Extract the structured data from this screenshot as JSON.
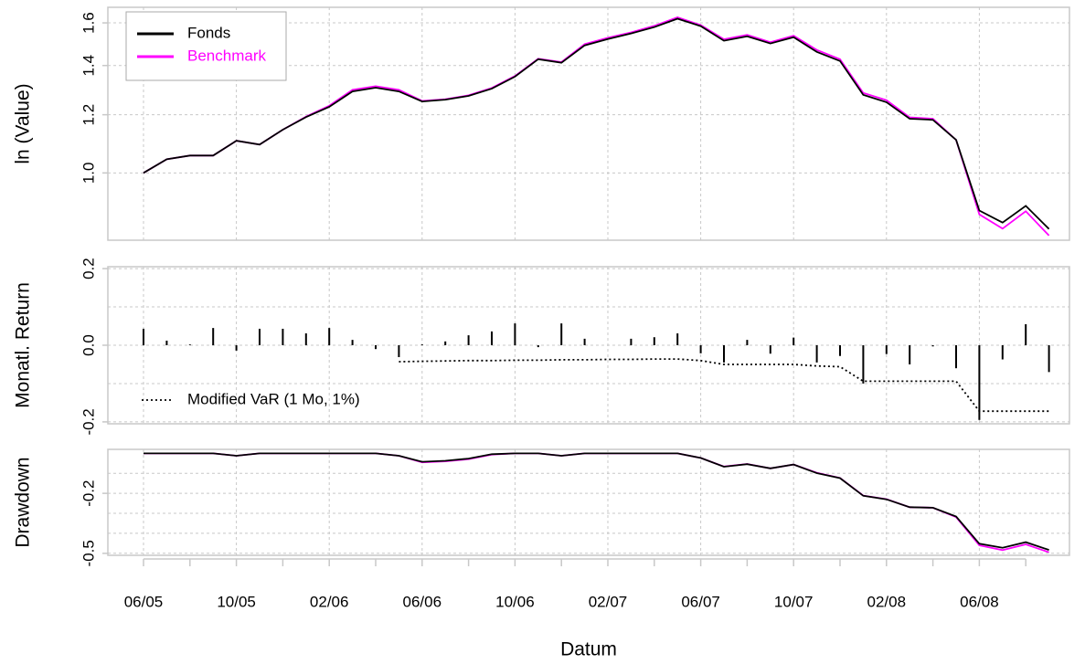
{
  "chart_data": [
    {
      "type": "line",
      "y_label": "ln (Value)",
      "log_scale": true,
      "grid": true,
      "legend": "top-left",
      "ylim": [
        0.81,
        1.68
      ],
      "yticks": [
        {
          "value": 1,
          "label": "1.0"
        },
        1.2,
        1.4,
        1.6
      ],
      "series": [
        {
          "name": "Fonds",
          "color": "#000000",
          "values": [
            1.0,
            1.044,
            1.056,
            1.056,
            1.106,
            1.093,
            1.145,
            1.191,
            1.23,
            1.291,
            1.306,
            1.291,
            1.251,
            1.258,
            1.273,
            1.302,
            1.352,
            1.428,
            1.412,
            1.491,
            1.521,
            1.548,
            1.579,
            1.621,
            1.584,
            1.513,
            1.534,
            1.5,
            1.53,
            1.461,
            1.42,
            1.277,
            1.248,
            1.185,
            1.181,
            1.109,
            0.889,
            0.856,
            0.902,
            0.839
          ]
        },
        {
          "name": "Benchmark",
          "color": "#ff00ff",
          "values": [
            1.0,
            1.044,
            1.056,
            1.056,
            1.106,
            1.093,
            1.145,
            1.193,
            1.234,
            1.297,
            1.312,
            1.297,
            1.253,
            1.26,
            1.275,
            1.305,
            1.355,
            1.43,
            1.415,
            1.497,
            1.527,
            1.553,
            1.585,
            1.628,
            1.589,
            1.52,
            1.541,
            1.506,
            1.537,
            1.47,
            1.428,
            1.285,
            1.256,
            1.19,
            1.185,
            1.109,
            0.878,
            0.84,
            0.887,
            0.822
          ]
        }
      ]
    },
    {
      "type": "bar",
      "y_label": "Monatl. Return",
      "grid": true,
      "legend": "bottom-left",
      "color": "#000000",
      "ylim": [
        -0.205,
        0.205
      ],
      "yticks": [
        -0.2,
        {
          "value": 0,
          "label": "0.0"
        },
        0.2
      ],
      "minor_yticks": [
        -0.1,
        0.1
      ],
      "values": [
        0.043,
        0.012,
        0.002,
        0.045,
        -0.014,
        0.043,
        0.043,
        0.031,
        0.045,
        0.014,
        -0.01,
        -0.031,
        0.002,
        0.01,
        0.026,
        0.036,
        0.057,
        -0.005,
        0.057,
        0.017,
        0.0,
        0.017,
        0.021,
        0.031,
        -0.021,
        -0.045,
        0.014,
        -0.022,
        0.02,
        -0.045,
        -0.028,
        -0.1,
        -0.023,
        -0.05,
        -0.003,
        -0.06,
        -0.195,
        -0.037,
        0.055,
        -0.07
      ],
      "series": [
        {
          "name": "Modified VaR (1 Mo, 1%)",
          "color": "#000000",
          "line_style": "dotted",
          "values": [
            null,
            null,
            null,
            null,
            null,
            null,
            null,
            null,
            null,
            null,
            null,
            -0.043,
            -0.042,
            -0.041,
            -0.04,
            -0.04,
            -0.039,
            -0.039,
            -0.038,
            -0.038,
            -0.037,
            -0.037,
            -0.036,
            -0.036,
            -0.04,
            -0.05,
            -0.05,
            -0.05,
            -0.05,
            -0.054,
            -0.056,
            -0.094,
            -0.094,
            -0.094,
            -0.094,
            -0.094,
            -0.172,
            -0.172,
            -0.172,
            -0.172
          ]
        }
      ]
    },
    {
      "type": "line",
      "y_label": "Drawdown",
      "x_label": "Datum",
      "grid": true,
      "ylim": [
        -0.51,
        0.02
      ],
      "yticks": [
        -0.5,
        -0.2
      ],
      "minor_yticks": [
        -0.4,
        -0.3,
        -0.1
      ],
      "categories": [
        "06/05",
        null,
        null,
        null,
        "10/05",
        null,
        null,
        null,
        "02/06",
        null,
        null,
        null,
        "06/06",
        null,
        null,
        null,
        "10/06",
        null,
        null,
        null,
        "02/07",
        null,
        null,
        null,
        "06/07",
        null,
        null,
        null,
        "10/07",
        null,
        null,
        null,
        "02/08",
        null,
        null,
        null,
        "06/08",
        null,
        null,
        null
      ],
      "series": [
        {
          "name": "Fonds",
          "color": "#000000",
          "values": [
            0,
            0,
            0,
            0,
            -0.012,
            0,
            0,
            0,
            0,
            0,
            0,
            -0.012,
            -0.042,
            -0.037,
            -0.026,
            -0.004,
            0,
            0,
            -0.012,
            0,
            0,
            0,
            0,
            0,
            -0.023,
            -0.067,
            -0.054,
            -0.075,
            -0.056,
            -0.099,
            -0.124,
            -0.212,
            -0.23,
            -0.269,
            -0.272,
            -0.316,
            -0.452,
            -0.472,
            -0.444,
            -0.483
          ]
        },
        {
          "name": "Benchmark",
          "color": "#ff00ff",
          "values": [
            0,
            0,
            0,
            0,
            -0.012,
            0,
            0,
            0,
            0,
            0,
            0,
            -0.012,
            -0.045,
            -0.04,
            -0.029,
            -0.006,
            0,
            0,
            -0.012,
            0,
            0,
            0,
            0,
            0,
            -0.023,
            -0.066,
            -0.053,
            -0.075,
            -0.056,
            -0.097,
            -0.123,
            -0.211,
            -0.229,
            -0.269,
            -0.272,
            -0.319,
            -0.46,
            -0.484,
            -0.455,
            -0.495
          ]
        }
      ]
    }
  ]
}
